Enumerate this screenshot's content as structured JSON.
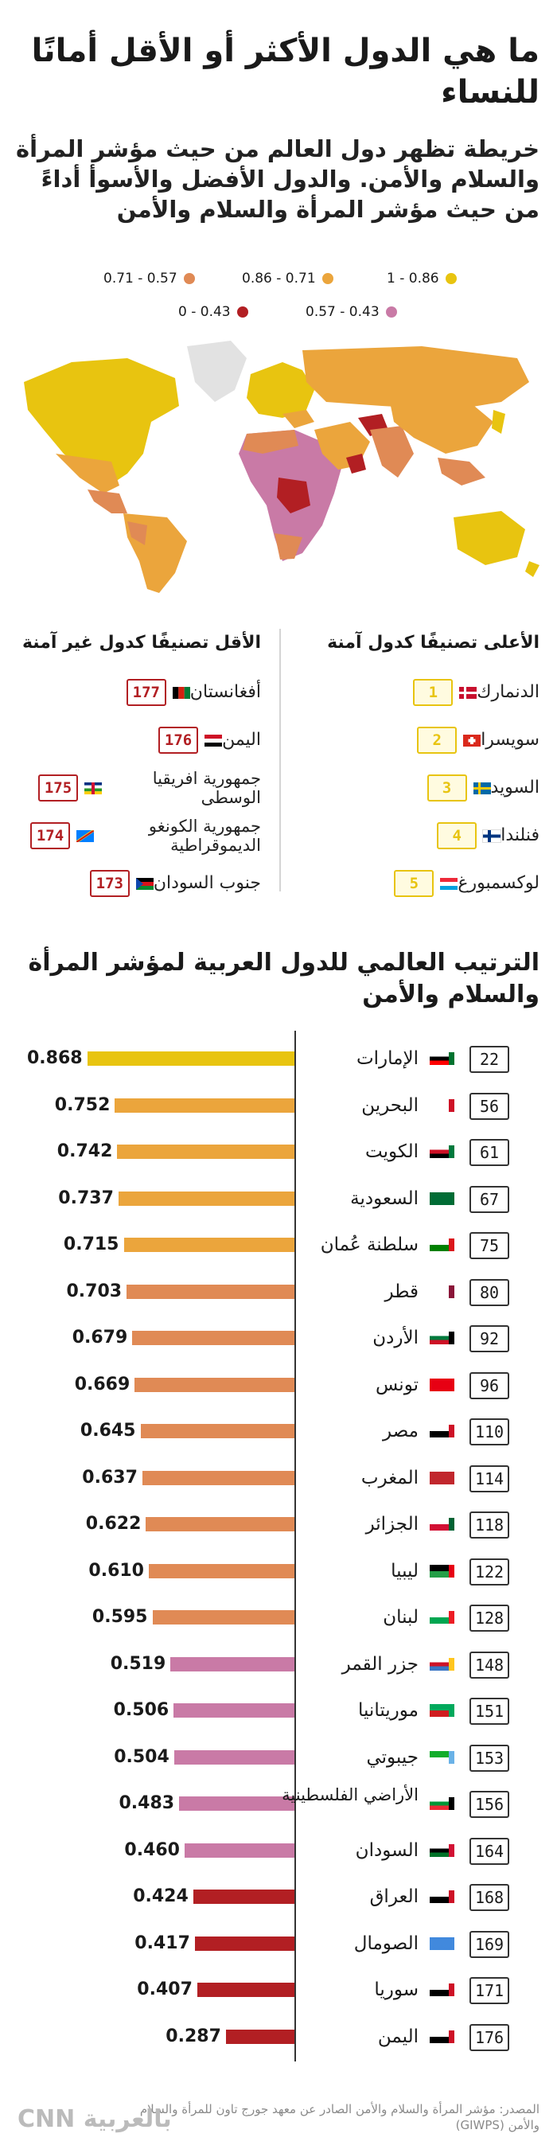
{
  "title": "ما هي الدول الأكثر أو الأقل أمانًا للنساء",
  "subtitle": "خريطة تظهر دول العالم من حيث مؤشر المرأة والسلام والأمن. والدول الأفضل والأسوأ أداءً من حيث مؤشر المرأة والسلام والأمن",
  "legend": [
    {
      "label": "0.71 - 0.57",
      "color": "#e08a55"
    },
    {
      "label": "0.86 - 0.71",
      "color": "#eba53c"
    },
    {
      "label": "1 - 0.86",
      "color": "#e8c410"
    },
    {
      "label": "0 - 0.43",
      "color": "#b21f23"
    },
    {
      "label": "0.57 - 0.43",
      "color": "#c97aa6"
    }
  ],
  "top": {
    "title": "الأعلى تصنيفًا كدول آمنة",
    "items": [
      {
        "rank": "1",
        "name": "الدنمارك"
      },
      {
        "rank": "2",
        "name": "سويسرا"
      },
      {
        "rank": "3",
        "name": "السويد"
      },
      {
        "rank": "4",
        "name": "فنلندا"
      },
      {
        "rank": "5",
        "name": "لوكسمبورغ"
      }
    ]
  },
  "bottom": {
    "title": "الأقل تصنيفًا كدول غير آمنة",
    "items": [
      {
        "rank": "177",
        "name": "أفغانستان"
      },
      {
        "rank": "176",
        "name": "اليمن"
      },
      {
        "rank": "175",
        "name": "جمهورية افريقيا الوسطى"
      },
      {
        "rank": "174",
        "name": "جمهورية الكونغو الديموقراطية"
      },
      {
        "rank": "173",
        "name": "جنوب السودان"
      }
    ]
  },
  "section_title": "الترتيب العالمي للدول العربية لمؤشر المرأة والسلام والأمن",
  "chart_data": {
    "type": "bar",
    "orientation": "horizontal",
    "xlim": [
      0,
      1
    ],
    "categories": [
      "الإمارات",
      "البحرين",
      "الكويت",
      "السعودية",
      "سلطنة عُمان",
      "قطر",
      "الأردن",
      "تونس",
      "مصر",
      "المغرب",
      "الجزائر",
      "ليبيا",
      "لبنان",
      "جزر القمر",
      "موريتانيا",
      "جيبوتي",
      "الأراضي الفلسطينية",
      "السودان",
      "العراق",
      "الصومال",
      "سوريا",
      "اليمن"
    ],
    "ranks": [
      "22",
      "56",
      "61",
      "67",
      "75",
      "80",
      "92",
      "96",
      "110",
      "114",
      "118",
      "122",
      "128",
      "148",
      "151",
      "153",
      "156",
      "164",
      "168",
      "169",
      "171",
      "176"
    ],
    "values": [
      0.868,
      0.752,
      0.742,
      0.737,
      0.715,
      0.703,
      0.679,
      0.669,
      0.645,
      0.637,
      0.622,
      0.61,
      0.595,
      0.519,
      0.506,
      0.504,
      0.483,
      0.46,
      0.424,
      0.417,
      0.407,
      0.287
    ],
    "labels": [
      "0.868",
      "0.752",
      "0.742",
      "0.737",
      "0.715",
      "0.703",
      "0.679",
      "0.669",
      "0.645",
      "0.637",
      "0.622",
      "0.610",
      "0.595",
      "0.519",
      "0.506",
      "0.504",
      "0.483",
      "0.460",
      "0.424",
      "0.417",
      "0.407",
      "0.287"
    ],
    "bar_colors": [
      "#e8c410",
      "#eba53c",
      "#eba53c",
      "#eba53c",
      "#eba53c",
      "#e08a55",
      "#e08a55",
      "#e08a55",
      "#e08a55",
      "#e08a55",
      "#e08a55",
      "#e08a55",
      "#e08a55",
      "#c97aa6",
      "#c97aa6",
      "#c97aa6",
      "#c97aa6",
      "#c97aa6",
      "#b21f23",
      "#b21f23",
      "#b21f23",
      "#b21f23"
    ]
  },
  "source": "المصدر: مؤشر المرأة والسلام والأمن الصادر عن معهد جورج تاون للمرأة والسلام والأمن (GIWPS)",
  "logo": "CNN بالعربية"
}
